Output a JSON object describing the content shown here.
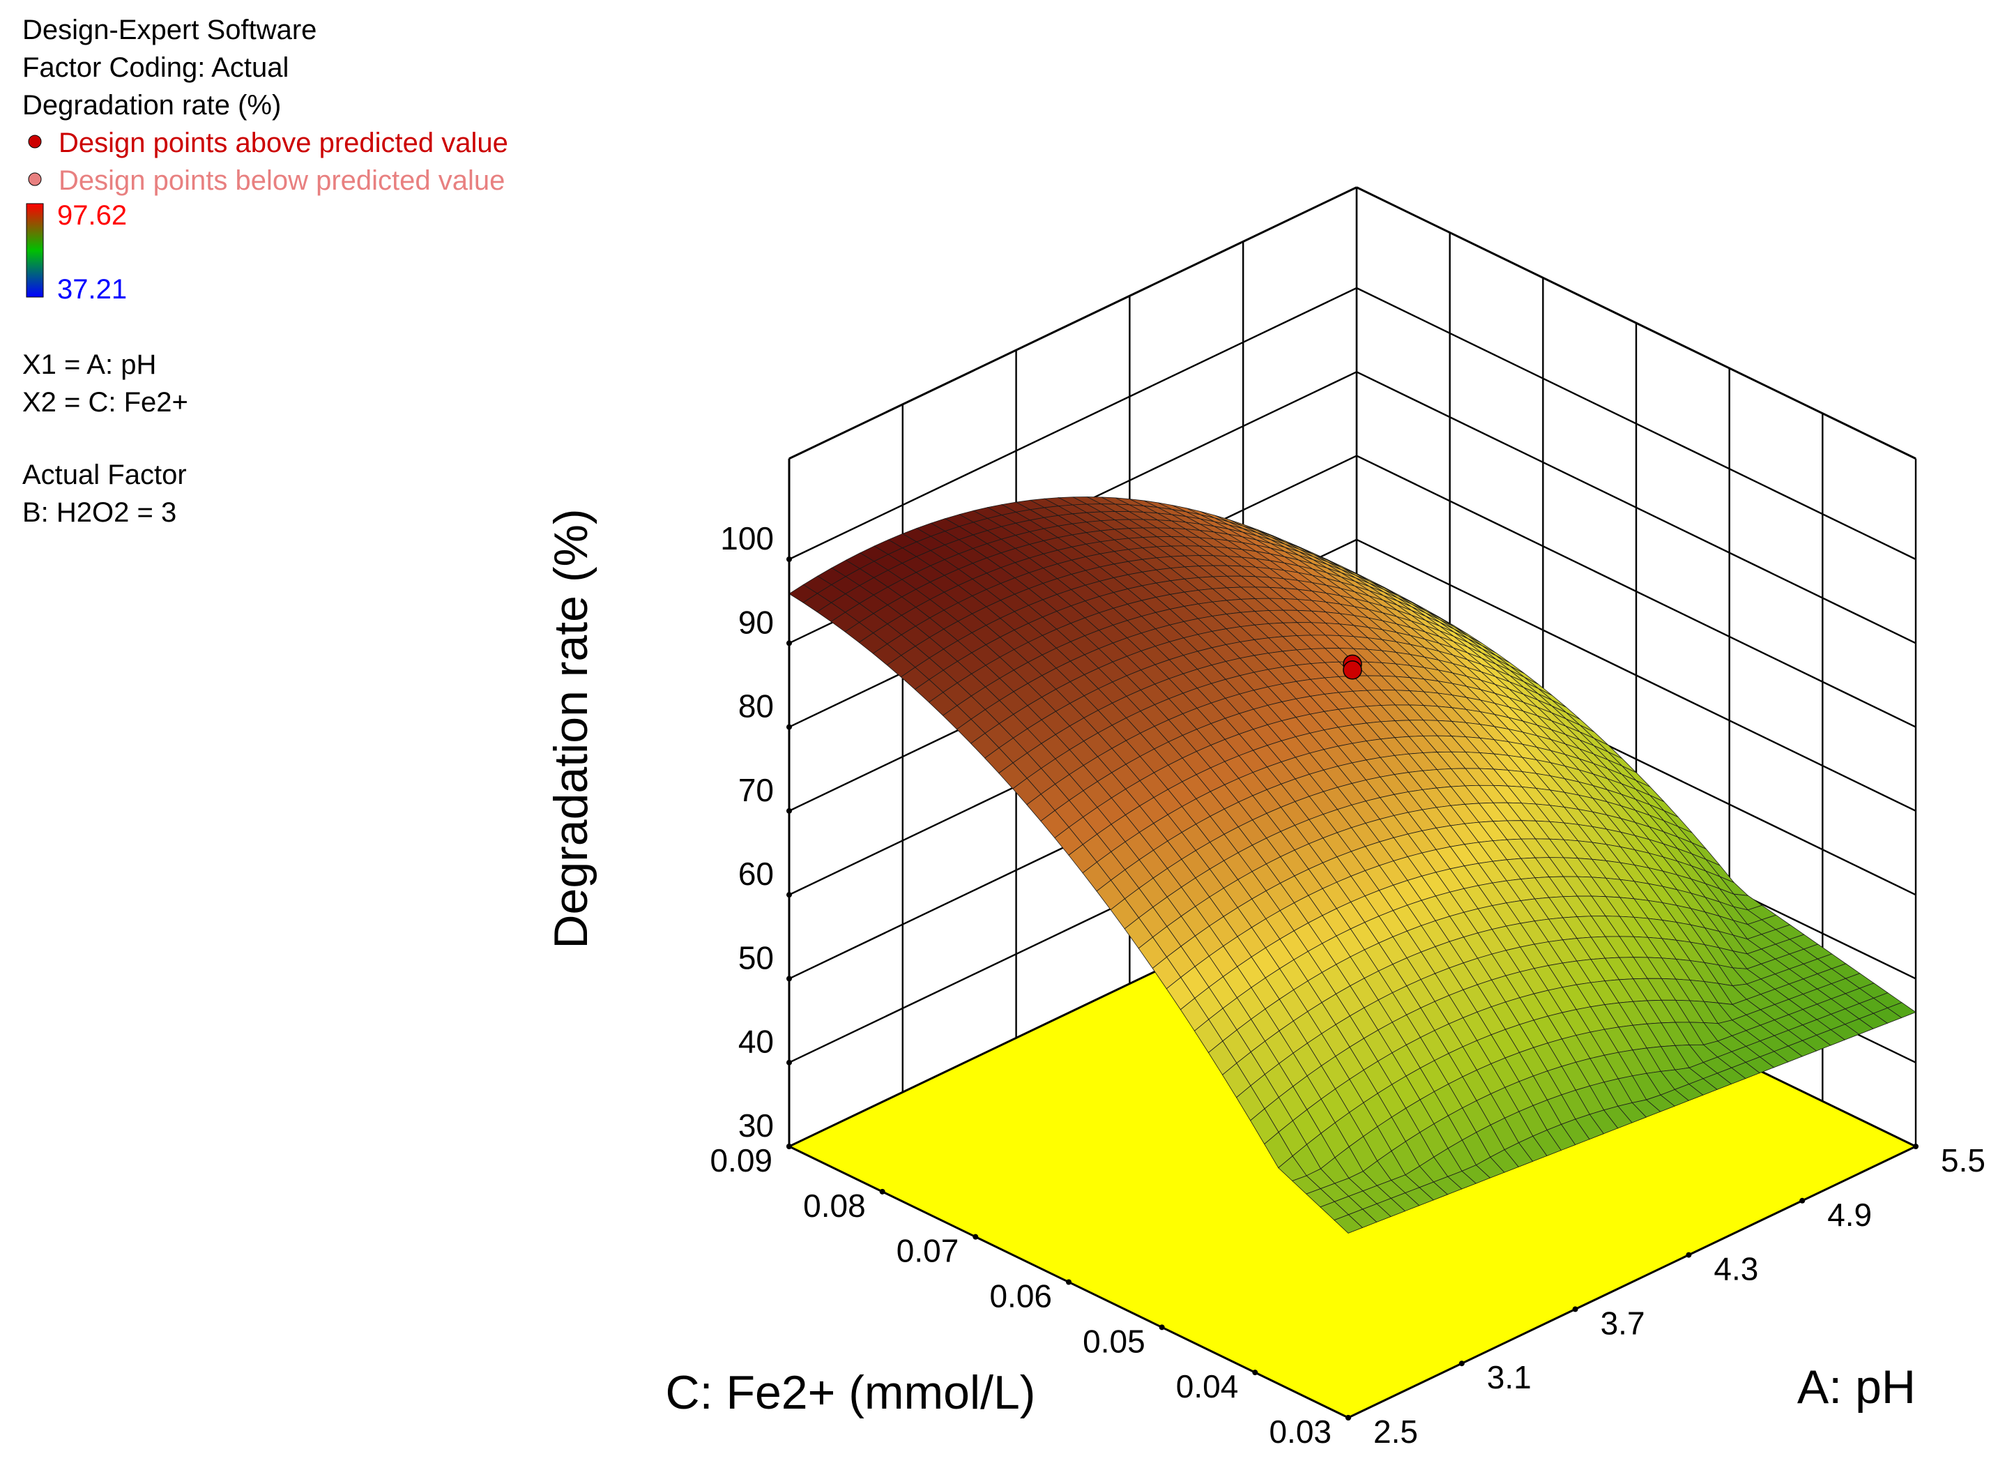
{
  "info_panel": {
    "software": "Design-Expert Software",
    "factor_coding": "Factor Coding: Actual",
    "response": "Degradation rate (%)",
    "legend_above": "Design points above predicted value",
    "legend_below": "Design points below predicted value",
    "colorbar_max": "97.62",
    "colorbar_min": "37.21",
    "x1_def": "X1 = A: pH",
    "x2_def": "X2 = C: Fe2+",
    "actual_factor_heading": "Actual Factor",
    "actual_factor_value": "B: H2O2 = 3"
  },
  "colors": {
    "above_point": "#cc0000",
    "below_point": "#e88080",
    "colorbar_max_text": "#ff0000",
    "colorbar_min_text": "#0000ff",
    "floor": "#ffff00"
  },
  "chart_data": {
    "type": "surface3d",
    "zlabel": "Degradation rate (%)",
    "xlabel": "A: pH",
    "ylabel": "C: Fe2+ (mmol/L)",
    "x_ticks": [
      "2.5",
      "3.1",
      "3.7",
      "4.3",
      "4.9",
      "5.5"
    ],
    "y_ticks": [
      "0.03",
      "0.04",
      "0.05",
      "0.06",
      "0.07",
      "0.08",
      "0.09"
    ],
    "z_ticks": [
      "30",
      "40",
      "50",
      "60",
      "70",
      "80",
      "90",
      "100"
    ],
    "x_range": [
      2.5,
      5.5
    ],
    "y_range": [
      0.03,
      0.09
    ],
    "z_range": [
      30,
      100
    ],
    "color_range": [
      37.21,
      97.62
    ],
    "surface_corners": {
      "pH2.5_Fe0.03": 52,
      "pH2.5_Fe0.09": 82,
      "pH5.5_Fe0.03": 46,
      "pH5.5_Fe0.09": 60
    },
    "surface_peak": {
      "pH": 3.7,
      "Fe": 0.075,
      "z": 97.62
    },
    "design_points": [
      {
        "pH": 4.0,
        "Fe": 0.06,
        "z": 87.5,
        "position": "above"
      },
      {
        "pH": 4.0,
        "Fe": 0.06,
        "z": 86.8,
        "position": "above"
      }
    ]
  }
}
